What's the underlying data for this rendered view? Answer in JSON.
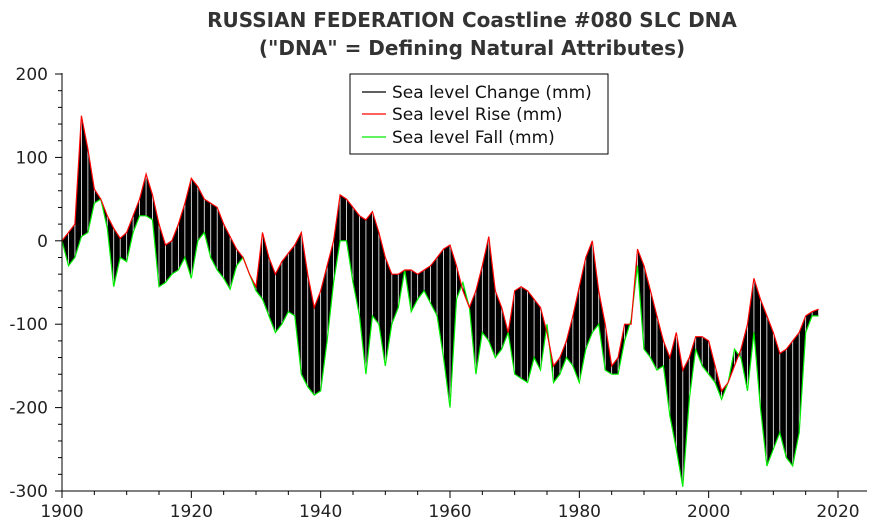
{
  "chart_data": {
    "type": "line",
    "title": "RUSSIAN FEDERATION Coastline #080 SLC DNA",
    "subtitle": "(\"DNA\" = Defining Natural Attributes)",
    "xlabel": "",
    "ylabel": "",
    "xlim": [
      1900,
      2020
    ],
    "ylim": [
      -300,
      200
    ],
    "x_ticks": [
      1900,
      1920,
      1940,
      1960,
      1980,
      2000,
      2020
    ],
    "y_ticks": [
      200,
      100,
      0,
      -100,
      -200,
      -300
    ],
    "legend_position": "top-center",
    "series": [
      {
        "name": "Sea level Change (mm)",
        "color": "#000000"
      },
      {
        "name": "Sea level Rise (mm)",
        "color": "#ff0000"
      },
      {
        "name": "Sea level Fall (mm)",
        "color": "#00ee00"
      }
    ],
    "x": [
      1900,
      1901,
      1902,
      1903,
      1904,
      1905,
      1906,
      1907,
      1908,
      1909,
      1910,
      1911,
      1912,
      1913,
      1914,
      1915,
      1916,
      1917,
      1918,
      1919,
      1920,
      1921,
      1922,
      1923,
      1924,
      1925,
      1926,
      1927,
      1928,
      1929,
      1930,
      1931,
      1932,
      1933,
      1934,
      1935,
      1936,
      1937,
      1938,
      1939,
      1940,
      1941,
      1942,
      1943,
      1944,
      1945,
      1946,
      1947,
      1948,
      1949,
      1950,
      1951,
      1952,
      1953,
      1954,
      1955,
      1956,
      1957,
      1958,
      1959,
      1960,
      1961,
      1962,
      1963,
      1964,
      1965,
      1966,
      1967,
      1968,
      1969,
      1970,
      1971,
      1972,
      1973,
      1974,
      1975,
      1976,
      1977,
      1978,
      1979,
      1980,
      1981,
      1982,
      1983,
      1984,
      1985,
      1986,
      1987,
      1988,
      1989,
      1990,
      1991,
      1992,
      1993,
      1994,
      1995,
      1996,
      1997,
      1998,
      1999,
      2000,
      2001,
      2002,
      2003,
      2004,
      2005,
      2006,
      2007,
      2008,
      2009,
      2010,
      2011,
      2012,
      2013,
      2014,
      2015,
      2016,
      2017
    ],
    "rise": [
      0,
      10,
      20,
      150,
      110,
      62,
      50,
      30,
      15,
      3,
      10,
      30,
      50,
      80,
      55,
      20,
      -5,
      0,
      20,
      45,
      75,
      65,
      50,
      45,
      40,
      20,
      5,
      -10,
      -20,
      -40,
      -55,
      10,
      -20,
      -40,
      -25,
      -15,
      -5,
      10,
      -40,
      -80,
      -60,
      -30,
      0,
      55,
      50,
      40,
      30,
      25,
      35,
      10,
      -20,
      -40,
      -40,
      -35,
      -35,
      -40,
      -35,
      -30,
      -20,
      -10,
      -5,
      -30,
      -60,
      -80,
      -60,
      -30,
      5,
      -60,
      -80,
      -110,
      -60,
      -55,
      -60,
      -70,
      -80,
      -110,
      -150,
      -140,
      -120,
      -90,
      -55,
      -20,
      0,
      -60,
      -100,
      -150,
      -140,
      -100,
      -100,
      -10,
      -30,
      -60,
      -90,
      -120,
      -140,
      -110,
      -155,
      -140,
      -115,
      -115,
      -120,
      -150,
      -180,
      -170,
      -150,
      -130,
      -100,
      -45,
      -70,
      -90,
      -110,
      -135,
      -130,
      -120,
      -110,
      -90,
      -85,
      -82
    ],
    "fall": [
      0,
      -30,
      -20,
      5,
      10,
      45,
      50,
      15,
      -55,
      -20,
      -25,
      10,
      30,
      30,
      25,
      -55,
      -50,
      -40,
      -35,
      -20,
      -45,
      0,
      10,
      -20,
      -35,
      -45,
      -58,
      -30,
      -20,
      -40,
      -60,
      -70,
      -90,
      -110,
      -100,
      -85,
      -90,
      -160,
      -175,
      -185,
      -180,
      -120,
      -50,
      0,
      0,
      -50,
      -90,
      -160,
      -90,
      -100,
      -150,
      -100,
      -80,
      -35,
      -85,
      -70,
      -60,
      -75,
      -90,
      -140,
      -200,
      -70,
      -50,
      -80,
      -160,
      -110,
      -120,
      -140,
      -130,
      -110,
      -160,
      -165,
      -170,
      -140,
      -155,
      -100,
      -170,
      -160,
      -140,
      -150,
      -170,
      -130,
      -110,
      -100,
      -155,
      -160,
      -160,
      -120,
      -95,
      -30,
      -130,
      -140,
      -155,
      -150,
      -210,
      -250,
      -295,
      -190,
      -130,
      -150,
      -160,
      -170,
      -190,
      -170,
      -130,
      -140,
      -180,
      -110,
      -200,
      -270,
      -250,
      -230,
      -260,
      -270,
      -230,
      -110,
      -90,
      -90
    ]
  }
}
